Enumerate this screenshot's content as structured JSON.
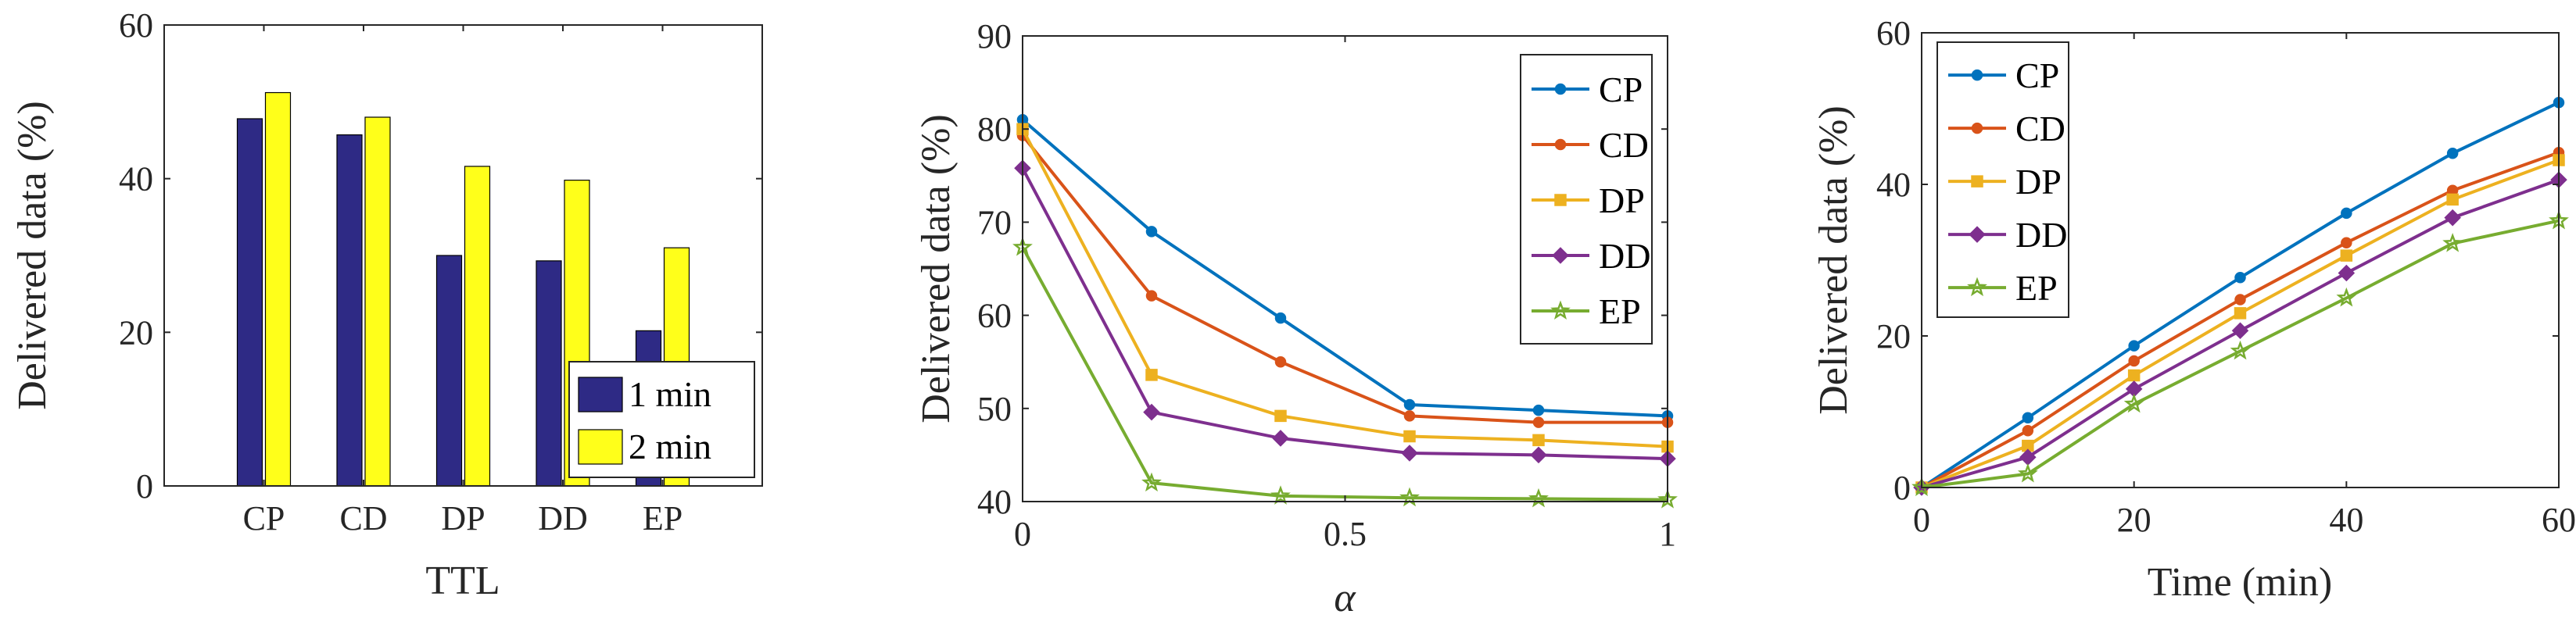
{
  "chart_data": [
    {
      "type": "bar",
      "title": "",
      "xlabel": "TTL",
      "ylabel": "Delivered data (%)",
      "ylim": [
        0,
        60
      ],
      "yticks": [
        0,
        20,
        40,
        60
      ],
      "categories": [
        "CP",
        "CD",
        "DP",
        "DD",
        "EP"
      ],
      "series": [
        {
          "name": "1 min",
          "color": "#2E2A85",
          "values": [
            47.8,
            45.7,
            30.0,
            29.3,
            20.2
          ]
        },
        {
          "name": "2 min",
          "color": "#FFFF1A",
          "values": [
            51.2,
            48.0,
            41.6,
            39.8,
            31.0
          ]
        }
      ],
      "legend_position": "bottom-right"
    },
    {
      "type": "line",
      "title": "",
      "xlabel": "α",
      "ylabel": "Delivered data (%)",
      "xlim": [
        0,
        1
      ],
      "ylim": [
        40,
        90
      ],
      "xticks": [
        0,
        0.5,
        1
      ],
      "xtick_labels": [
        "0",
        "0.5",
        "1"
      ],
      "yticks": [
        40,
        50,
        60,
        70,
        80,
        90
      ],
      "x": [
        0,
        0.2,
        0.4,
        0.6,
        0.8,
        1.0
      ],
      "series": [
        {
          "name": "CP",
          "color": "#0072BD",
          "marker": "circle",
          "values": [
            81.0,
            69.0,
            59.7,
            50.4,
            49.8,
            49.2
          ]
        },
        {
          "name": "CD",
          "color": "#D95319",
          "marker": "circle",
          "values": [
            79.3,
            62.1,
            55.0,
            49.2,
            48.5,
            48.5
          ]
        },
        {
          "name": "DP",
          "color": "#EDB120",
          "marker": "square",
          "values": [
            80.0,
            53.6,
            49.2,
            47.0,
            46.6,
            45.9
          ]
        },
        {
          "name": "DD",
          "color": "#7E2F8E",
          "marker": "diamond",
          "values": [
            75.8,
            49.6,
            46.8,
            45.2,
            45.0,
            44.6
          ]
        },
        {
          "name": "EP",
          "color": "#77AC30",
          "marker": "star",
          "values": [
            67.3,
            42.0,
            40.6,
            40.4,
            40.3,
            40.2
          ]
        }
      ],
      "legend_position": "top-right"
    },
    {
      "type": "line",
      "title": "",
      "xlabel": "Time (min)",
      "ylabel": "Delivered data (%)",
      "xlim": [
        0,
        60
      ],
      "ylim": [
        0,
        60
      ],
      "xticks": [
        0,
        20,
        40,
        60
      ],
      "xtick_labels": [
        "0",
        "20",
        "40",
        "60"
      ],
      "yticks": [
        0,
        20,
        40,
        60
      ],
      "x": [
        0,
        10,
        20,
        30,
        40,
        50,
        60
      ],
      "series": [
        {
          "name": "CP",
          "color": "#0072BD",
          "marker": "circle",
          "values": [
            0,
            9.2,
            18.7,
            27.7,
            36.2,
            44.1,
            50.8
          ]
        },
        {
          "name": "CD",
          "color": "#D95319",
          "marker": "circle",
          "values": [
            0,
            7.5,
            16.7,
            24.8,
            32.3,
            39.2,
            44.2
          ]
        },
        {
          "name": "DP",
          "color": "#EDB120",
          "marker": "square",
          "values": [
            0,
            5.5,
            14.8,
            23.0,
            30.6,
            38.0,
            43.2
          ]
        },
        {
          "name": "DD",
          "color": "#7E2F8E",
          "marker": "diamond",
          "values": [
            0,
            4.0,
            13.0,
            20.7,
            28.3,
            35.6,
            40.6
          ]
        },
        {
          "name": "EP",
          "color": "#77AC30",
          "marker": "star",
          "values": [
            0,
            1.8,
            11.0,
            18.0,
            25.0,
            32.2,
            35.2
          ]
        }
      ],
      "legend_position": "top-left"
    }
  ]
}
